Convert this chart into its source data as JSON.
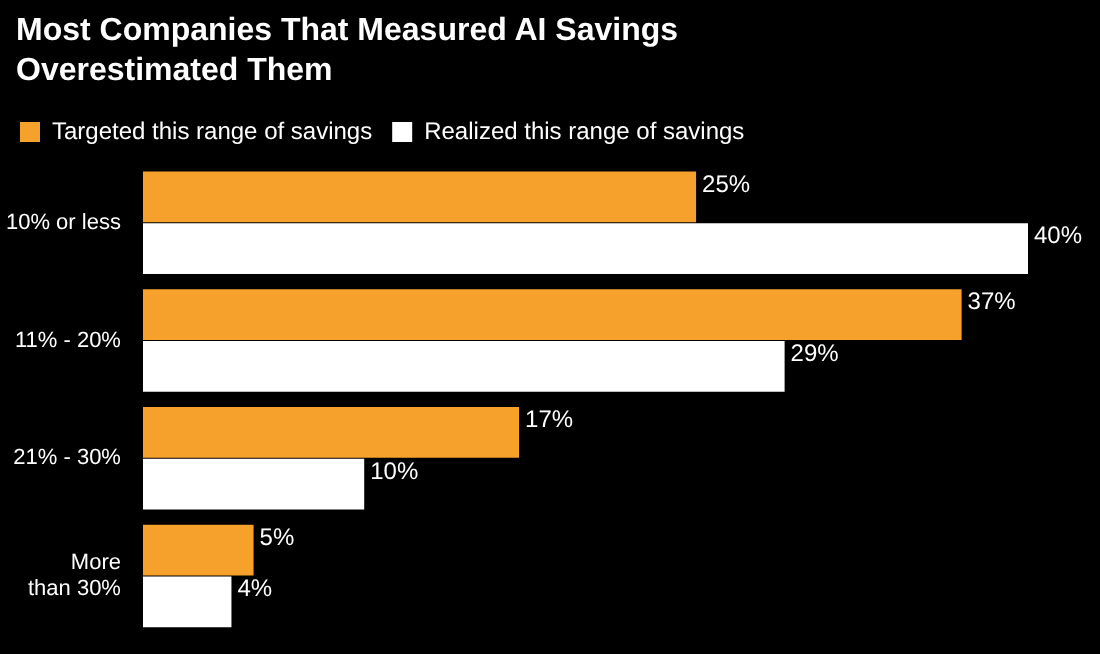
{
  "chart_data": {
    "type": "bar",
    "orientation": "horizontal",
    "title": "Most Companies That Measured AI Savings Overestimated Them",
    "categories": [
      "10% or less",
      "11% - 20%",
      "21% - 30%",
      "More than 30%"
    ],
    "series": [
      {
        "name": "Targeted this range of savings",
        "color": "#f5a12b",
        "values": [
          25,
          37,
          17,
          5
        ],
        "value_labels": [
          "25%",
          "37%",
          "17%",
          "5%"
        ]
      },
      {
        "name": "Realized this range of savings",
        "color": "#ffffff",
        "values": [
          40,
          29,
          10,
          4
        ],
        "value_labels": [
          "40%",
          "29%",
          "10%",
          "4%"
        ]
      }
    ],
    "tick_labels": "y",
    "legend": "top left"
  }
}
